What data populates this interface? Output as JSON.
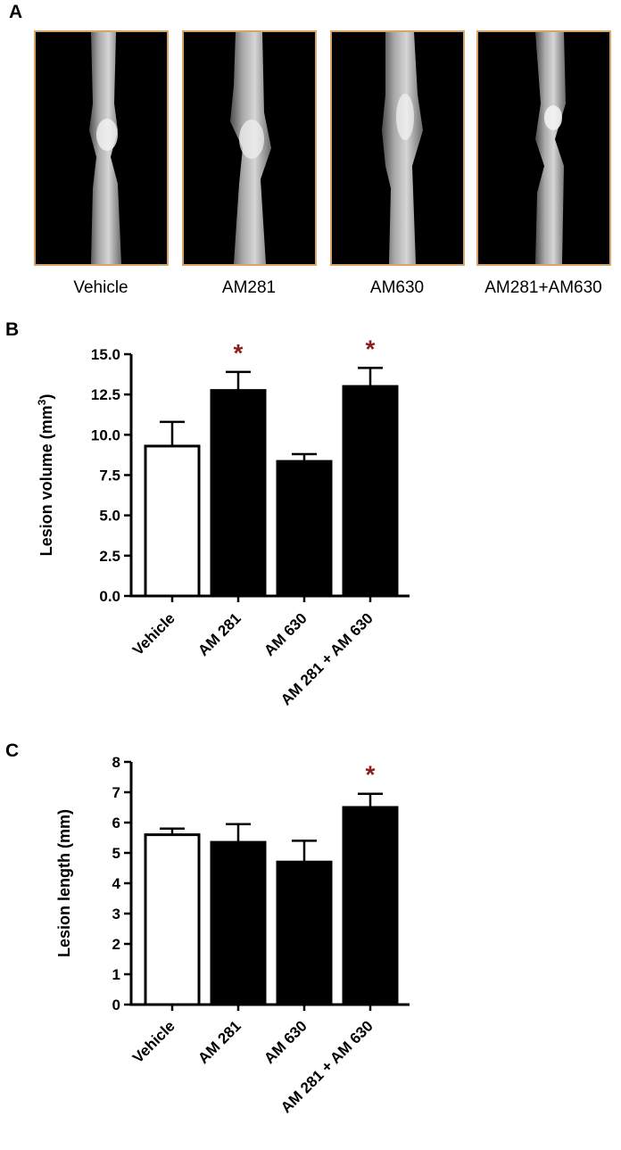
{
  "panels": {
    "a": {
      "letter": "A",
      "images": [
        {
          "label": "Vehicle"
        },
        {
          "label": "AM281"
        },
        {
          "label": "AM630"
        },
        {
          "label": "AM281+AM630"
        }
      ]
    },
    "b": {
      "letter": "B"
    },
    "c": {
      "letter": "C"
    }
  },
  "colors": {
    "bar_control": "#ffffff",
    "bar_treated": "#000000",
    "asterisk": "#8b1f1f",
    "image_border": "#d9a46a"
  },
  "chart_data": [
    {
      "type": "bar",
      "panel": "B",
      "categories": [
        "Vehicle",
        "AM 281",
        "AM 630",
        "AM 281 + AM 630"
      ],
      "values": [
        9.3,
        12.75,
        8.35,
        13.0
      ],
      "errors": [
        1.5,
        1.15,
        0.45,
        1.15
      ],
      "significant": [
        false,
        true,
        false,
        true
      ],
      "significance_marker": "*",
      "ylabel_main": "Lesion volume (mm",
      "ylabel_sup": "3",
      "ylabel_tail": ")",
      "ylim": [
        0,
        15
      ],
      "yticks": [
        0.0,
        2.5,
        5.0,
        7.5,
        10.0,
        12.5,
        15.0
      ],
      "ytick_labels": [
        "0.0",
        "2.5",
        "5.0",
        "7.5",
        "10.0",
        "12.5",
        "15.0"
      ],
      "bar_fill": [
        "#ffffff",
        "#000000",
        "#000000",
        "#000000"
      ]
    },
    {
      "type": "bar",
      "panel": "C",
      "categories": [
        "Vehicle",
        "AM 281",
        "AM 630",
        "AM 281 + AM 630"
      ],
      "values": [
        5.6,
        5.35,
        4.7,
        6.5
      ],
      "errors": [
        0.2,
        0.6,
        0.7,
        0.45
      ],
      "significant": [
        false,
        false,
        false,
        true
      ],
      "significance_marker": "*",
      "ylabel_main": "Lesion length (mm)",
      "ylabel_sup": "",
      "ylabel_tail": "",
      "ylim": [
        0,
        8
      ],
      "yticks": [
        0,
        1,
        2,
        3,
        4,
        5,
        6,
        7,
        8
      ],
      "ytick_labels": [
        "0",
        "1",
        "2",
        "3",
        "4",
        "5",
        "6",
        "7",
        "8"
      ],
      "bar_fill": [
        "#ffffff",
        "#000000",
        "#000000",
        "#000000"
      ]
    }
  ]
}
